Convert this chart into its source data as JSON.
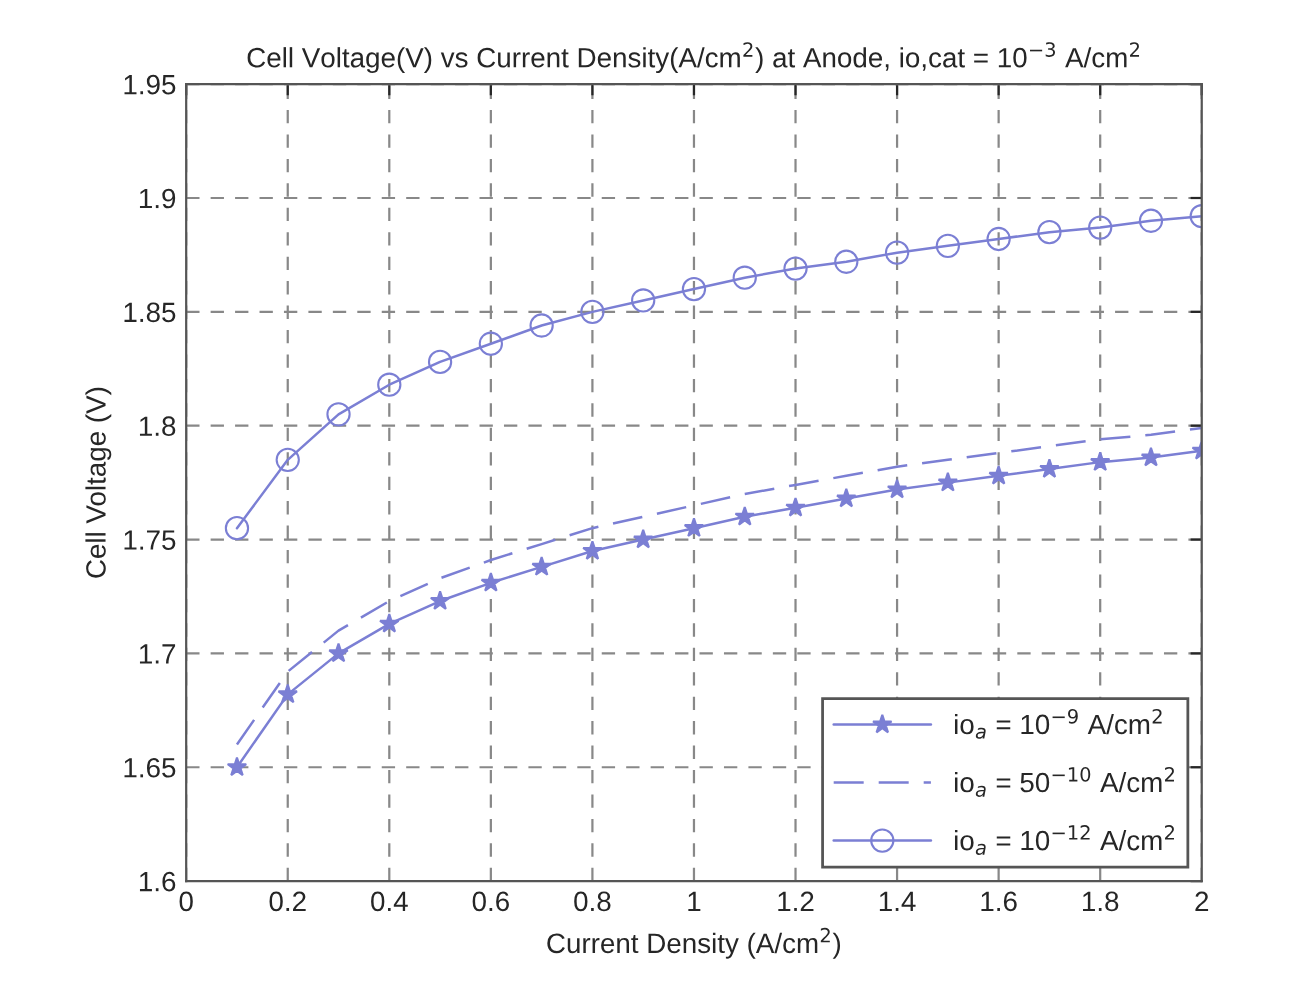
{
  "chart_data": {
    "type": "line",
    "title": "Cell Voltage(V) vs Current Density(A/cm$^{2}$) at Anode, io,cat = 10$^{−3}$ A/cm$^{2}$",
    "xlabel": "Current Density (A/cm$^{2}$)",
    "ylabel": "Cell Voltage (V)",
    "x": [
      0.1,
      0.2,
      0.3,
      0.4,
      0.5,
      0.6,
      0.7,
      0.8,
      0.9,
      1.0,
      1.1,
      1.2,
      1.3,
      1.4,
      1.5,
      1.6,
      1.7,
      1.8,
      1.9,
      2.0
    ],
    "series": [
      {
        "name": "io$_{a}$ = 10$^{−9}$ A/cm$^{2}$",
        "color": "#7b7fd4",
        "marker": "star",
        "line_style": "solid",
        "values": [
          1.65,
          1.682,
          1.7,
          1.713,
          1.723,
          1.731,
          1.738,
          1.745,
          1.75,
          1.755,
          1.76,
          1.764,
          1.768,
          1.772,
          1.775,
          1.778,
          1.781,
          1.784,
          1.786,
          1.789
        ]
      },
      {
        "name": "io$_{a}$ = 50$^{−10}$ A/cm$^{2}$",
        "color": "#7b7fd4",
        "marker": "none",
        "line_style": "dashed",
        "values": [
          1.66,
          1.692,
          1.71,
          1.723,
          1.733,
          1.741,
          1.748,
          1.755,
          1.76,
          1.765,
          1.77,
          1.774,
          1.778,
          1.782,
          1.785,
          1.788,
          1.791,
          1.794,
          1.796,
          1.799
        ]
      },
      {
        "name": "io$_{a}$ = 10$^{−12}$ A/cm$^{2}$",
        "color": "#7b7fd4",
        "marker": "circle",
        "line_style": "solid",
        "values": [
          1.755,
          1.785,
          1.805,
          1.818,
          1.828,
          1.836,
          1.844,
          1.85,
          1.855,
          1.86,
          1.865,
          1.869,
          1.872,
          1.876,
          1.879,
          1.882,
          1.885,
          1.887,
          1.89,
          1.892
        ]
      }
    ],
    "xlim": [
      0,
      2
    ],
    "xticks": [
      0,
      0.2,
      0.4,
      0.6,
      0.8,
      1,
      1.2,
      1.4,
      1.6,
      1.8,
      2
    ],
    "ylim": [
      1.6,
      1.95
    ],
    "yticks": [
      1.6,
      1.65,
      1.7,
      1.75,
      1.8,
      1.85,
      1.9,
      1.95
    ],
    "grid": true,
    "legend": "bottom right"
  }
}
